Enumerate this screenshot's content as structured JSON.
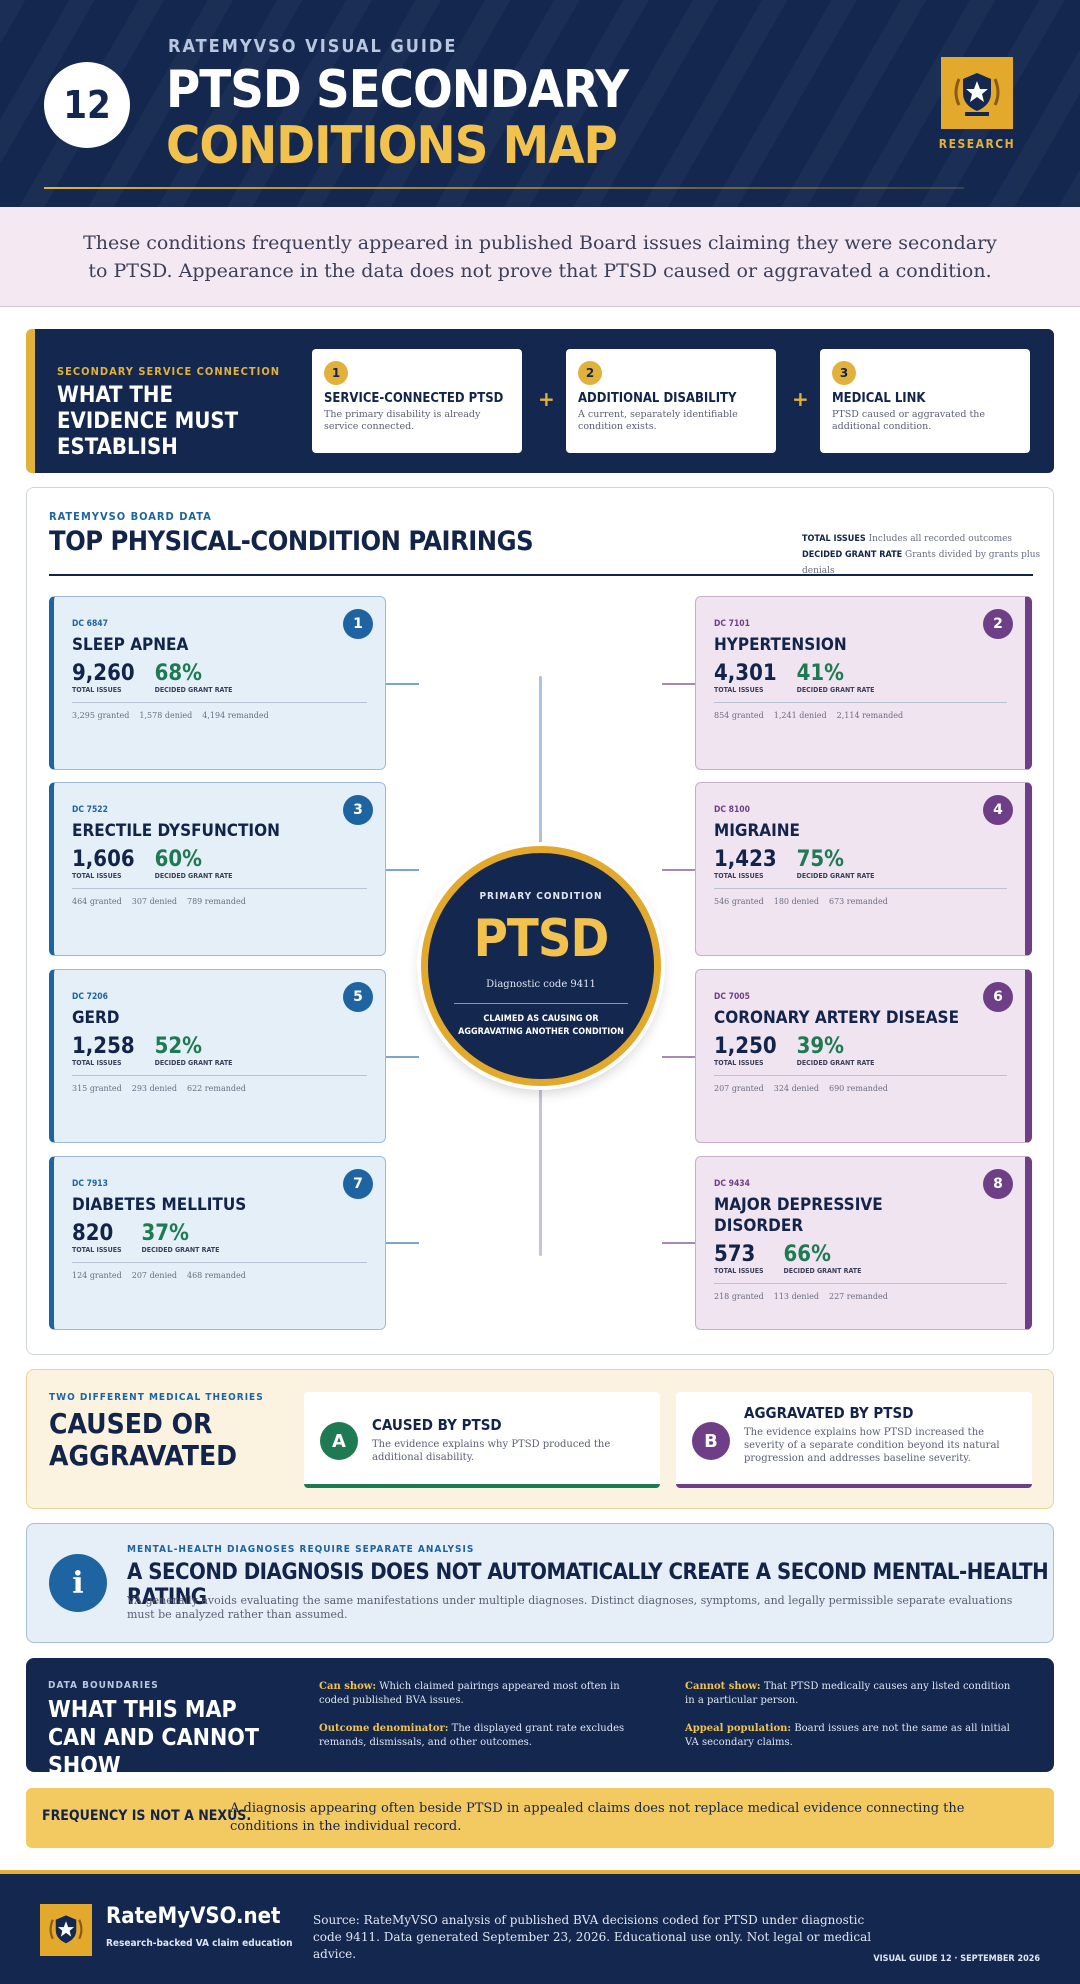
{
  "header": {
    "number": "12",
    "kicker": "RATEMYVSO VISUAL GUIDE",
    "title_line1": "PTSD SECONDARY",
    "title_line2": "CONDITIONS MAP",
    "seal_label": "RESEARCH",
    "seal_icon": "star-shield-icon"
  },
  "intro": "These conditions frequently appeared in published Board issues claiming they were secondary to PTSD. Appearance in the data does not prove that PTSD caused or aggravated a condition.",
  "evidence": {
    "kicker": "SECONDARY SERVICE CONNECTION",
    "title": "WHAT THE EVIDENCE MUST ESTABLISH",
    "plus": "+",
    "steps": [
      {
        "num": "1",
        "title": "SERVICE-CONNECTED PTSD",
        "desc": "The primary disability is already service connected."
      },
      {
        "num": "2",
        "title": "ADDITIONAL DISABILITY",
        "desc": "A current, separately identifiable condition exists."
      },
      {
        "num": "3",
        "title": "MEDICAL LINK",
        "desc": "PTSD caused or aggravated the additional condition."
      }
    ]
  },
  "map": {
    "kicker": "RATEMYVSO BOARD DATA",
    "title": "TOP PHYSICAL-CONDITION PAIRINGS",
    "legend": {
      "total_label": "TOTAL ISSUES",
      "total_desc": "Includes all recorded outcomes",
      "rate_label": "DECIDED GRANT RATE",
      "rate_desc": "Grants divided by grants plus denials"
    },
    "stat_labels": {
      "total": "TOTAL ISSUES",
      "rate": "DECIDED GRANT RATE"
    },
    "hub": {
      "kicker": "PRIMARY CONDITION",
      "title": "PTSD",
      "code": "Diagnostic code 9411",
      "caption": "CLAIMED AS CAUSING OR AGGRAVATING ANOTHER CONDITION"
    },
    "cards": [
      {
        "rank": "1",
        "dc": "DC 6847",
        "name": "SLEEP APNEA",
        "total": "9,260",
        "rate": "68%",
        "granted": "3,295 granted",
        "denied": "1,578 denied",
        "remanded": "4,194 remanded"
      },
      {
        "rank": "2",
        "dc": "DC 7101",
        "name": "HYPERTENSION",
        "total": "4,301",
        "rate": "41%",
        "granted": "854 granted",
        "denied": "1,241 denied",
        "remanded": "2,114 remanded"
      },
      {
        "rank": "3",
        "dc": "DC 7522",
        "name": "ERECTILE DYSFUNCTION",
        "total": "1,606",
        "rate": "60%",
        "granted": "464 granted",
        "denied": "307 denied",
        "remanded": "789 remanded"
      },
      {
        "rank": "4",
        "dc": "DC 8100",
        "name": "MIGRAINE",
        "total": "1,423",
        "rate": "75%",
        "granted": "546 granted",
        "denied": "180 denied",
        "remanded": "673 remanded"
      },
      {
        "rank": "5",
        "dc": "DC 7206",
        "name": "GERD",
        "total": "1,258",
        "rate": "52%",
        "granted": "315 granted",
        "denied": "293 denied",
        "remanded": "622 remanded"
      },
      {
        "rank": "6",
        "dc": "DC 7005",
        "name": "CORONARY ARTERY DISEASE",
        "total": "1,250",
        "rate": "39%",
        "granted": "207 granted",
        "denied": "324 denied",
        "remanded": "690 remanded"
      },
      {
        "rank": "7",
        "dc": "DC 7913",
        "name": "DIABETES MELLITUS",
        "total": "820",
        "rate": "37%",
        "granted": "124 granted",
        "denied": "207 denied",
        "remanded": "468 remanded"
      },
      {
        "rank": "8",
        "dc": "DC 9434",
        "name": "MAJOR DEPRESSIVE DISORDER",
        "total": "573",
        "rate": "66%",
        "granted": "218 granted",
        "denied": "113 denied",
        "remanded": "227 remanded"
      }
    ]
  },
  "theories": {
    "kicker": "TWO DIFFERENT MEDICAL THEORIES",
    "title": "CAUSED OR AGGRAVATED",
    "items": [
      {
        "letter": "A",
        "title": "CAUSED BY PTSD",
        "desc": "The evidence explains why PTSD produced the additional disability."
      },
      {
        "letter": "B",
        "title": "AGGRAVATED BY PTSD",
        "desc": "The evidence explains how PTSD increased the severity of a separate condition beyond its natural progression and addresses baseline severity."
      }
    ]
  },
  "info": {
    "icon": "i",
    "kicker": "MENTAL-HEALTH DIAGNOSES REQUIRE SEPARATE ANALYSIS",
    "title": "A SECOND DIAGNOSIS DOES NOT AUTOMATICALLY CREATE A SECOND MENTAL-HEALTH RATING",
    "desc": "VA generally avoids evaluating the same manifestations under multiple diagnoses. Distinct diagnoses, symptoms, and legally permissible separate evaluations must be analyzed rather than assumed."
  },
  "boundaries": {
    "kicker": "DATA BOUNDARIES",
    "title": "WHAT THIS MAP CAN AND CANNOT SHOW",
    "items": [
      {
        "label": "Can show:",
        "text": "Which claimed pairings appeared most often in coded published BVA issues."
      },
      {
        "label": "Cannot show:",
        "text": "That PTSD medically causes any listed condition in a particular person."
      },
      {
        "label": "Outcome denominator:",
        "text": "The displayed grant rate excludes remands, dismissals, and other outcomes."
      },
      {
        "label": "Appeal population:",
        "text": "Board issues are not the same as all initial VA secondary claims."
      }
    ]
  },
  "frequency": {
    "heading": "FREQUENCY IS NOT A NEXUS.",
    "text": "A diagnosis appearing often beside PTSD in appealed claims does not replace medical evidence connecting the conditions in the individual record."
  },
  "footer": {
    "brand": "RateMyVSO.net",
    "tagline": "Research-backed VA claim education",
    "source": "Source: RateMyVSO analysis of published BVA decisions coded for PTSD under diagnostic code 9411. Data generated September 23, 2026. Educational use only. Not legal or medical advice.",
    "version": "VISUAL GUIDE 12 · SEPTEMBER 2026"
  },
  "colors": {
    "navy": "#13274f",
    "gold": "#e2b13c",
    "blue_accent": "#1e64a0",
    "purple_accent": "#6e3f86",
    "green_rate": "#1d7a52"
  }
}
